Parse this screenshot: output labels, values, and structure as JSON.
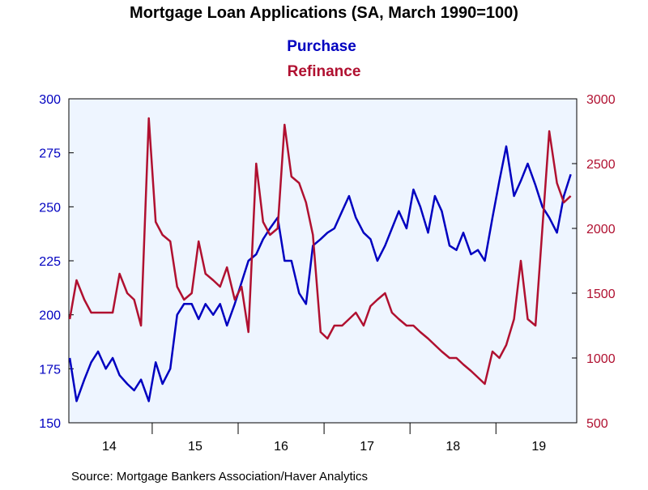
{
  "chart_data": {
    "type": "line",
    "title": "Mortgage Loan Applications (SA, March 1990=100)",
    "source": "Source:  Mortgage Bankers Association/Haver Analytics",
    "x": [
      14.04,
      14.12,
      14.21,
      14.29,
      14.37,
      14.46,
      14.54,
      14.62,
      14.71,
      14.79,
      14.87,
      14.96,
      15.04,
      15.12,
      15.21,
      15.29,
      15.37,
      15.46,
      15.54,
      15.62,
      15.71,
      15.79,
      15.87,
      15.96,
      16.04,
      16.12,
      16.21,
      16.29,
      16.37,
      16.46,
      16.54,
      16.62,
      16.71,
      16.79,
      16.87,
      16.96,
      17.04,
      17.12,
      17.21,
      17.29,
      17.37,
      17.46,
      17.54,
      17.62,
      17.71,
      17.79,
      17.87,
      17.96,
      18.04,
      18.12,
      18.21,
      18.29,
      18.37,
      18.46,
      18.54,
      18.62,
      18.71,
      18.79,
      18.87,
      18.96,
      19.04,
      19.12,
      19.21,
      19.29,
      19.37,
      19.46,
      19.54,
      19.62,
      19.71,
      19.79,
      19.87
    ],
    "series": [
      {
        "name": "Purchase",
        "color": "#0000c0",
        "axis": "y",
        "values": [
          180,
          160,
          170,
          178,
          183,
          175,
          180,
          172,
          168,
          165,
          170,
          160,
          178,
          168,
          175,
          200,
          205,
          205,
          198,
          205,
          200,
          205,
          195,
          205,
          215,
          225,
          228,
          235,
          240,
          245,
          225,
          225,
          210,
          205,
          232,
          235,
          238,
          240,
          248,
          255,
          245,
          238,
          235,
          225,
          232,
          240,
          248,
          240,
          258,
          250,
          238,
          255,
          248,
          232,
          230,
          238,
          228,
          230,
          225,
          245,
          262,
          278,
          255,
          262,
          270,
          260,
          250,
          245,
          238,
          255,
          265
        ]
      },
      {
        "name": "Refinance",
        "color": "#b01030",
        "axis": "y2",
        "values": [
          1300,
          1600,
          1450,
          1350,
          1350,
          1350,
          1350,
          1650,
          1500,
          1450,
          1250,
          2850,
          2050,
          1950,
          1900,
          1550,
          1450,
          1500,
          1900,
          1650,
          1600,
          1550,
          1700,
          1450,
          1550,
          1200,
          2500,
          2050,
          1950,
          2000,
          2800,
          2400,
          2350,
          2200,
          1950,
          1200,
          1150,
          1250,
          1250,
          1300,
          1350,
          1250,
          1400,
          1450,
          1500,
          1350,
          1300,
          1250,
          1250,
          1200,
          1150,
          1100,
          1050,
          1000,
          1000,
          950,
          900,
          850,
          800,
          1050,
          1000,
          1100,
          1300,
          1750,
          1300,
          1250,
          2000,
          2750,
          2350,
          2200,
          2250
        ]
      }
    ],
    "xlim": [
      14.03,
      19.94
    ],
    "xticks": [
      {
        "value": 14.5,
        "label": "14"
      },
      {
        "value": 15.5,
        "label": "15"
      },
      {
        "value": 16.5,
        "label": "16"
      },
      {
        "value": 17.5,
        "label": "17"
      },
      {
        "value": 18.5,
        "label": "18"
      },
      {
        "value": 19.5,
        "label": "19"
      }
    ],
    "xbounds": [
      15,
      16,
      17,
      18,
      19
    ],
    "ylim": [
      150,
      300
    ],
    "yticks": [
      150,
      175,
      200,
      225,
      250,
      275,
      300
    ],
    "y2lim": [
      500,
      3000
    ],
    "y2ticks": [
      500,
      1000,
      1500,
      2000,
      2500,
      3000
    ]
  }
}
